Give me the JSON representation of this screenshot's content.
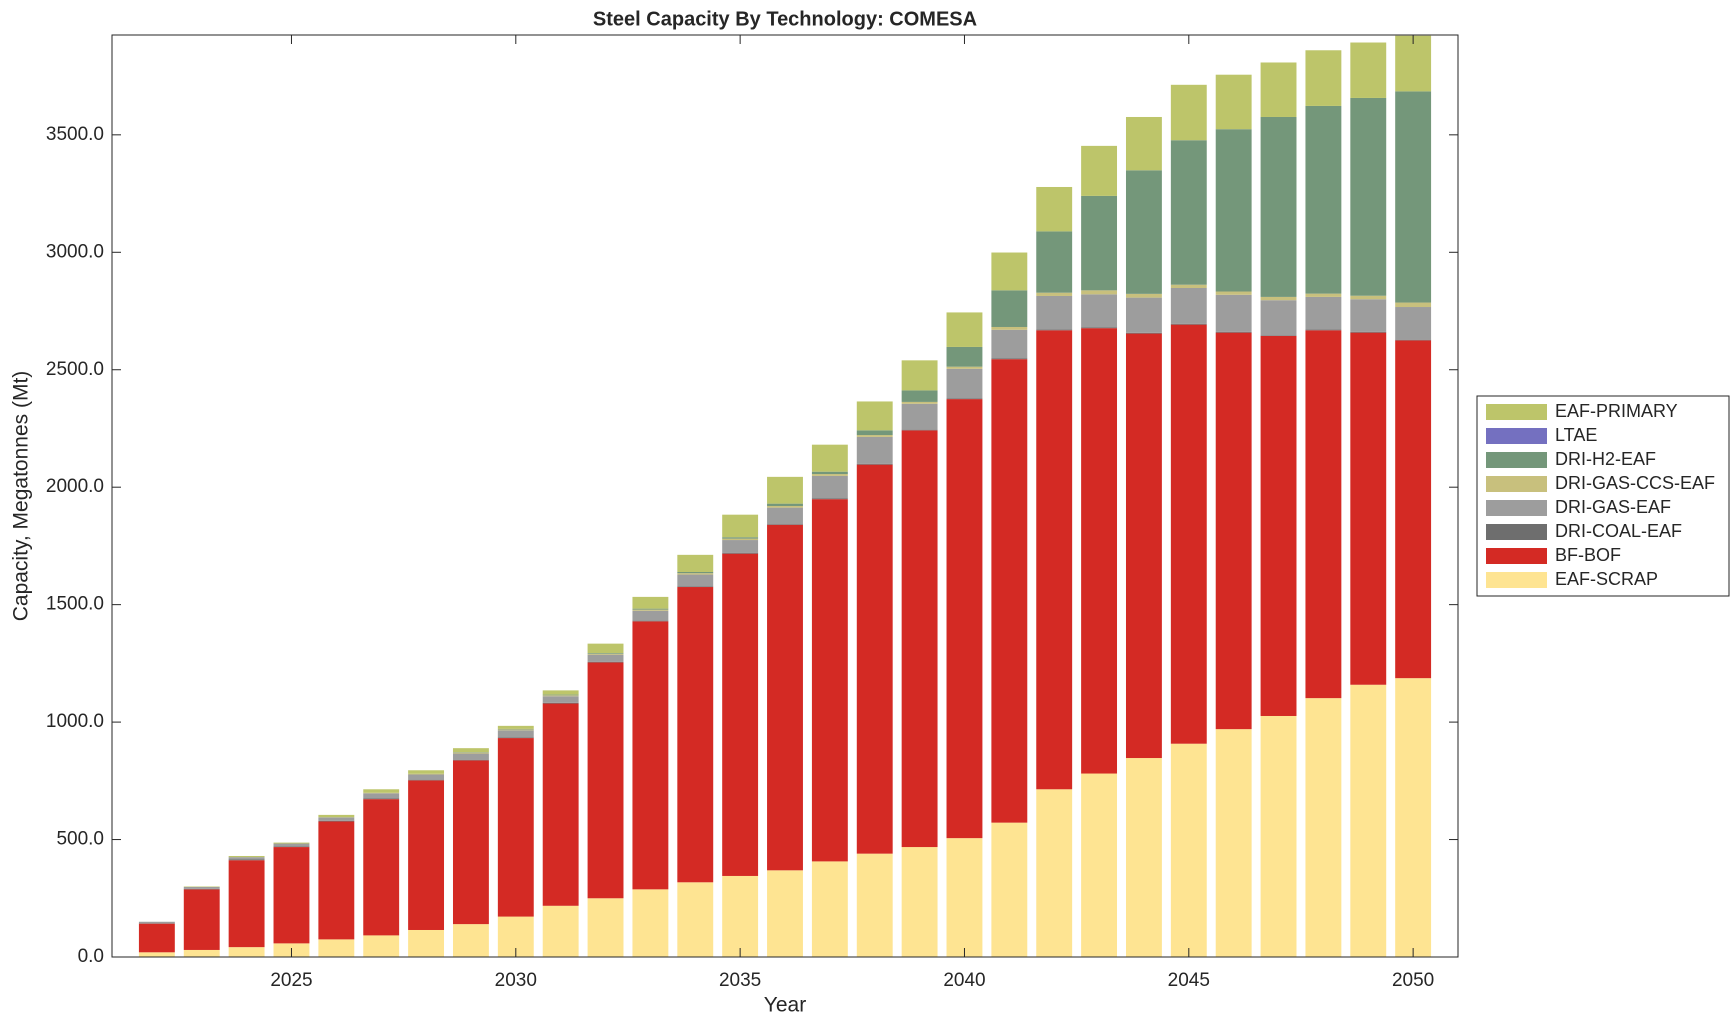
{
  "chart_data": {
    "type": "stacked_bar",
    "title": "Steel Capacity By Technology: COMESA",
    "xlabel": "Year",
    "ylabel": "Capacity, Megatonnes (Mt)",
    "x": [
      2022,
      2023,
      2024,
      2025,
      2026,
      2027,
      2028,
      2029,
      2030,
      2031,
      2032,
      2033,
      2034,
      2035,
      2036,
      2037,
      2038,
      2039,
      2040,
      2041,
      2042,
      2043,
      2044,
      2045,
      2046,
      2047,
      2048,
      2049,
      2050
    ],
    "xlim": [
      2021,
      2051
    ],
    "xticks": [
      2025,
      2030,
      2035,
      2040,
      2045,
      2050
    ],
    "ylim": [
      0,
      3925
    ],
    "yticks": [
      {
        "value": 0,
        "label": "0.0"
      },
      {
        "value": 500,
        "label": "500.0"
      },
      {
        "value": 1000,
        "label": "1000.0"
      },
      {
        "value": 1500,
        "label": "1500.0"
      },
      {
        "value": 2000,
        "label": "2000.0"
      },
      {
        "value": 2500,
        "label": "2500.0"
      },
      {
        "value": 3000,
        "label": "3000.0"
      },
      {
        "value": 3500,
        "label": "3500.0"
      }
    ],
    "legend_position": "right",
    "series": [
      {
        "name": "EAF-SCRAP",
        "color": "#fee492",
        "values": [
          20,
          30,
          42,
          58,
          75,
          92,
          115,
          140,
          172,
          218,
          250,
          288,
          318,
          345,
          369,
          407,
          440,
          468,
          506,
          572,
          714,
          781,
          847,
          908,
          970,
          1026,
          1102,
          1159,
          1187
        ]
      },
      {
        "name": "BF-BOF",
        "color": "#d42a24",
        "values": [
          122,
          258,
          370,
          410,
          502,
          580,
          637,
          697,
          760,
          861,
          1004,
          1141,
          1257,
          1372,
          1471,
          1542,
          1656,
          1774,
          1869,
          1973,
          1954,
          1896,
          1807,
          1784,
          1688,
          1618,
          1566,
          1499,
          1438
        ]
      },
      {
        "name": "DRI-COAL-EAF",
        "color": "#6e6e6e",
        "values": [
          2,
          2,
          3,
          3,
          3,
          3,
          3,
          3,
          3,
          3,
          3,
          3,
          3,
          3,
          3,
          3,
          3,
          3,
          3,
          3,
          3,
          3,
          3,
          3,
          3,
          3,
          3,
          3,
          3
        ]
      },
      {
        "name": "DRI-GAS-EAF",
        "color": "#9d9d9d",
        "values": [
          6,
          8,
          10,
          12,
          14,
          22,
          22,
          26,
          30,
          28,
          30,
          42,
          50,
          55,
          70,
          96,
          115,
          110,
          126,
          122,
          143,
          141,
          150,
          153,
          158,
          149,
          139,
          139,
          139
        ]
      },
      {
        "name": "DRI-GAS-CCS-EAF",
        "color": "#c8c07d",
        "values": [
          0,
          0,
          0,
          0,
          1,
          2,
          3,
          4,
          4,
          4,
          4,
          5,
          6,
          6,
          7,
          8,
          8,
          8,
          9,
          12,
          14,
          17,
          16,
          14,
          14,
          14,
          14,
          15,
          19
        ]
      },
      {
        "name": "DRI-H2-EAF",
        "color": "#74977a",
        "values": [
          0,
          0,
          0,
          0,
          0,
          0,
          0,
          2,
          2,
          3,
          3,
          4,
          5,
          6,
          10,
          10,
          20,
          49,
          84,
          156,
          261,
          402,
          526,
          615,
          691,
          766,
          799,
          842,
          899
        ]
      },
      {
        "name": "LTAE",
        "color": "#7470c0",
        "values": [
          0,
          0,
          0,
          0,
          0,
          0,
          0,
          0,
          0,
          0,
          0,
          0,
          0,
          0,
          0,
          0,
          0,
          0,
          0,
          0,
          0,
          0,
          0,
          0,
          0,
          0,
          0,
          0,
          0
        ]
      },
      {
        "name": "EAF-PRIMARY",
        "color": "#bdc56a",
        "values": [
          0,
          2,
          5,
          4,
          10,
          15,
          15,
          17,
          13,
          18,
          40,
          50,
          73,
          96,
          114,
          115,
          123,
          128,
          147,
          161,
          189,
          213,
          227,
          236,
          232,
          232,
          237,
          236,
          237
        ]
      }
    ]
  }
}
